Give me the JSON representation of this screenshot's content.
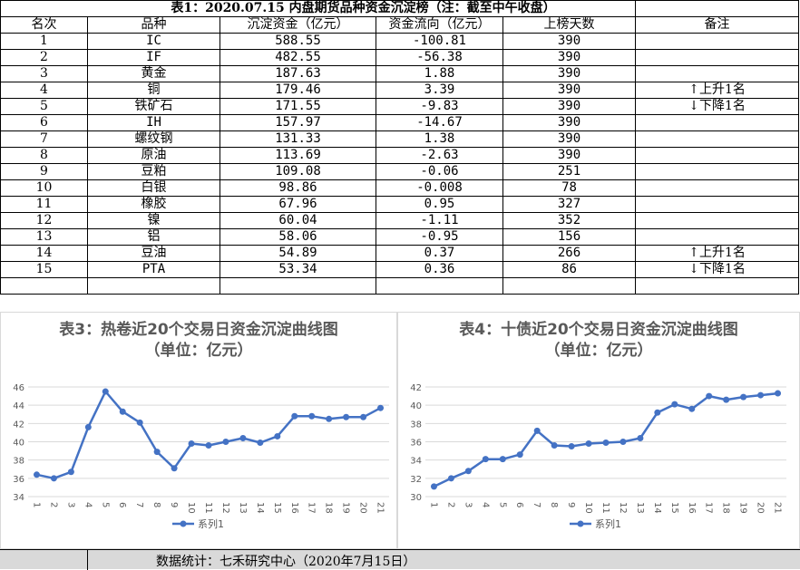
{
  "table": {
    "title": "表1：2020.07.15 内盘期货品种资金沉淀榜（注：截至中午收盘）",
    "headers": [
      "名次",
      "品种",
      "沉淀资金（亿元）",
      "资金流向（亿元）",
      "上榜天数",
      "备注"
    ],
    "rows": [
      {
        "rank": "1",
        "name": "IC",
        "funds": "588.55",
        "flow": "-100.81",
        "days": "390",
        "note": ""
      },
      {
        "rank": "2",
        "name": "IF",
        "funds": "482.55",
        "flow": "-56.38",
        "days": "390",
        "note": ""
      },
      {
        "rank": "3",
        "name": "黄金",
        "funds": "187.63",
        "flow": "1.88",
        "days": "390",
        "note": ""
      },
      {
        "rank": "4",
        "name": "铜",
        "funds": "179.46",
        "flow": "3.39",
        "days": "390",
        "note": "上升1名",
        "arrow": "↑"
      },
      {
        "rank": "5",
        "name": "铁矿石",
        "funds": "171.55",
        "flow": "-9.83",
        "days": "390",
        "note": "下降1名",
        "arrow": "↓"
      },
      {
        "rank": "6",
        "name": "IH",
        "funds": "157.97",
        "flow": "-14.67",
        "days": "390",
        "note": ""
      },
      {
        "rank": "7",
        "name": "螺纹钢",
        "funds": "131.33",
        "flow": "1.38",
        "days": "390",
        "note": ""
      },
      {
        "rank": "8",
        "name": "原油",
        "funds": "113.69",
        "flow": "-2.63",
        "days": "390",
        "note": ""
      },
      {
        "rank": "9",
        "name": "豆粕",
        "funds": "109.08",
        "flow": "-0.06",
        "days": "251",
        "note": ""
      },
      {
        "rank": "10",
        "name": "白银",
        "funds": "98.86",
        "flow": "-0.008",
        "days": "78",
        "note": ""
      },
      {
        "rank": "11",
        "name": "橡胶",
        "funds": "67.96",
        "flow": "0.95",
        "days": "327",
        "note": ""
      },
      {
        "rank": "12",
        "name": "镍",
        "funds": "60.04",
        "flow": "-1.11",
        "days": "352",
        "note": ""
      },
      {
        "rank": "13",
        "name": "铝",
        "funds": "58.06",
        "flow": "-0.95",
        "days": "156",
        "note": ""
      },
      {
        "rank": "14",
        "name": "豆油",
        "funds": "54.89",
        "flow": "0.37",
        "days": "266",
        "note": "上升1名",
        "arrow": "↑"
      },
      {
        "rank": "15",
        "name": "PTA",
        "funds": "53.34",
        "flow": "0.36",
        "days": "86",
        "note": "下降1名",
        "arrow": "↓"
      }
    ]
  },
  "footer": {
    "text": "数据统计：七禾研究中心（2020年7月15日）"
  },
  "chart_data": [
    {
      "type": "line",
      "title": "表3：热卷近20个交易日资金沉淀曲线图",
      "subtitle": "（单位：亿元）",
      "categories": [
        "1",
        "2",
        "3",
        "4",
        "5",
        "6",
        "7",
        "8",
        "9",
        "10",
        "11",
        "12",
        "13",
        "14",
        "15",
        "16",
        "17",
        "18",
        "19",
        "20",
        "21"
      ],
      "series": [
        {
          "name": "系列1",
          "values": [
            36.4,
            36.0,
            36.7,
            41.6,
            45.5,
            43.3,
            42.1,
            38.9,
            37.1,
            39.8,
            39.6,
            40.0,
            40.4,
            39.9,
            40.6,
            42.8,
            42.8,
            42.5,
            42.7,
            42.7,
            43.7
          ]
        }
      ],
      "ylim": [
        34,
        46
      ],
      "yticks": [
        34,
        36,
        38,
        40,
        42,
        44,
        46
      ],
      "grid": true,
      "legend": "bottom",
      "color": "#4472c4"
    },
    {
      "type": "line",
      "title": "表4：十债近20个交易日资金沉淀曲线图",
      "subtitle": "（单位：亿元）",
      "categories": [
        "1",
        "2",
        "3",
        "4",
        "5",
        "6",
        "7",
        "8",
        "9",
        "10",
        "11",
        "12",
        "13",
        "14",
        "15",
        "16",
        "17",
        "18",
        "19",
        "20",
        "21"
      ],
      "series": [
        {
          "name": "系列1",
          "values": [
            31.1,
            32.0,
            32.8,
            34.1,
            34.1,
            34.6,
            37.2,
            35.6,
            35.5,
            35.8,
            35.9,
            36.0,
            36.4,
            39.2,
            40.1,
            39.6,
            41.0,
            40.6,
            40.9,
            41.1,
            41.3
          ]
        }
      ],
      "ylim": [
        30,
        42
      ],
      "yticks": [
        30,
        32,
        34,
        36,
        38,
        40,
        42
      ],
      "grid": true,
      "legend": "bottom",
      "color": "#4472c4"
    }
  ]
}
